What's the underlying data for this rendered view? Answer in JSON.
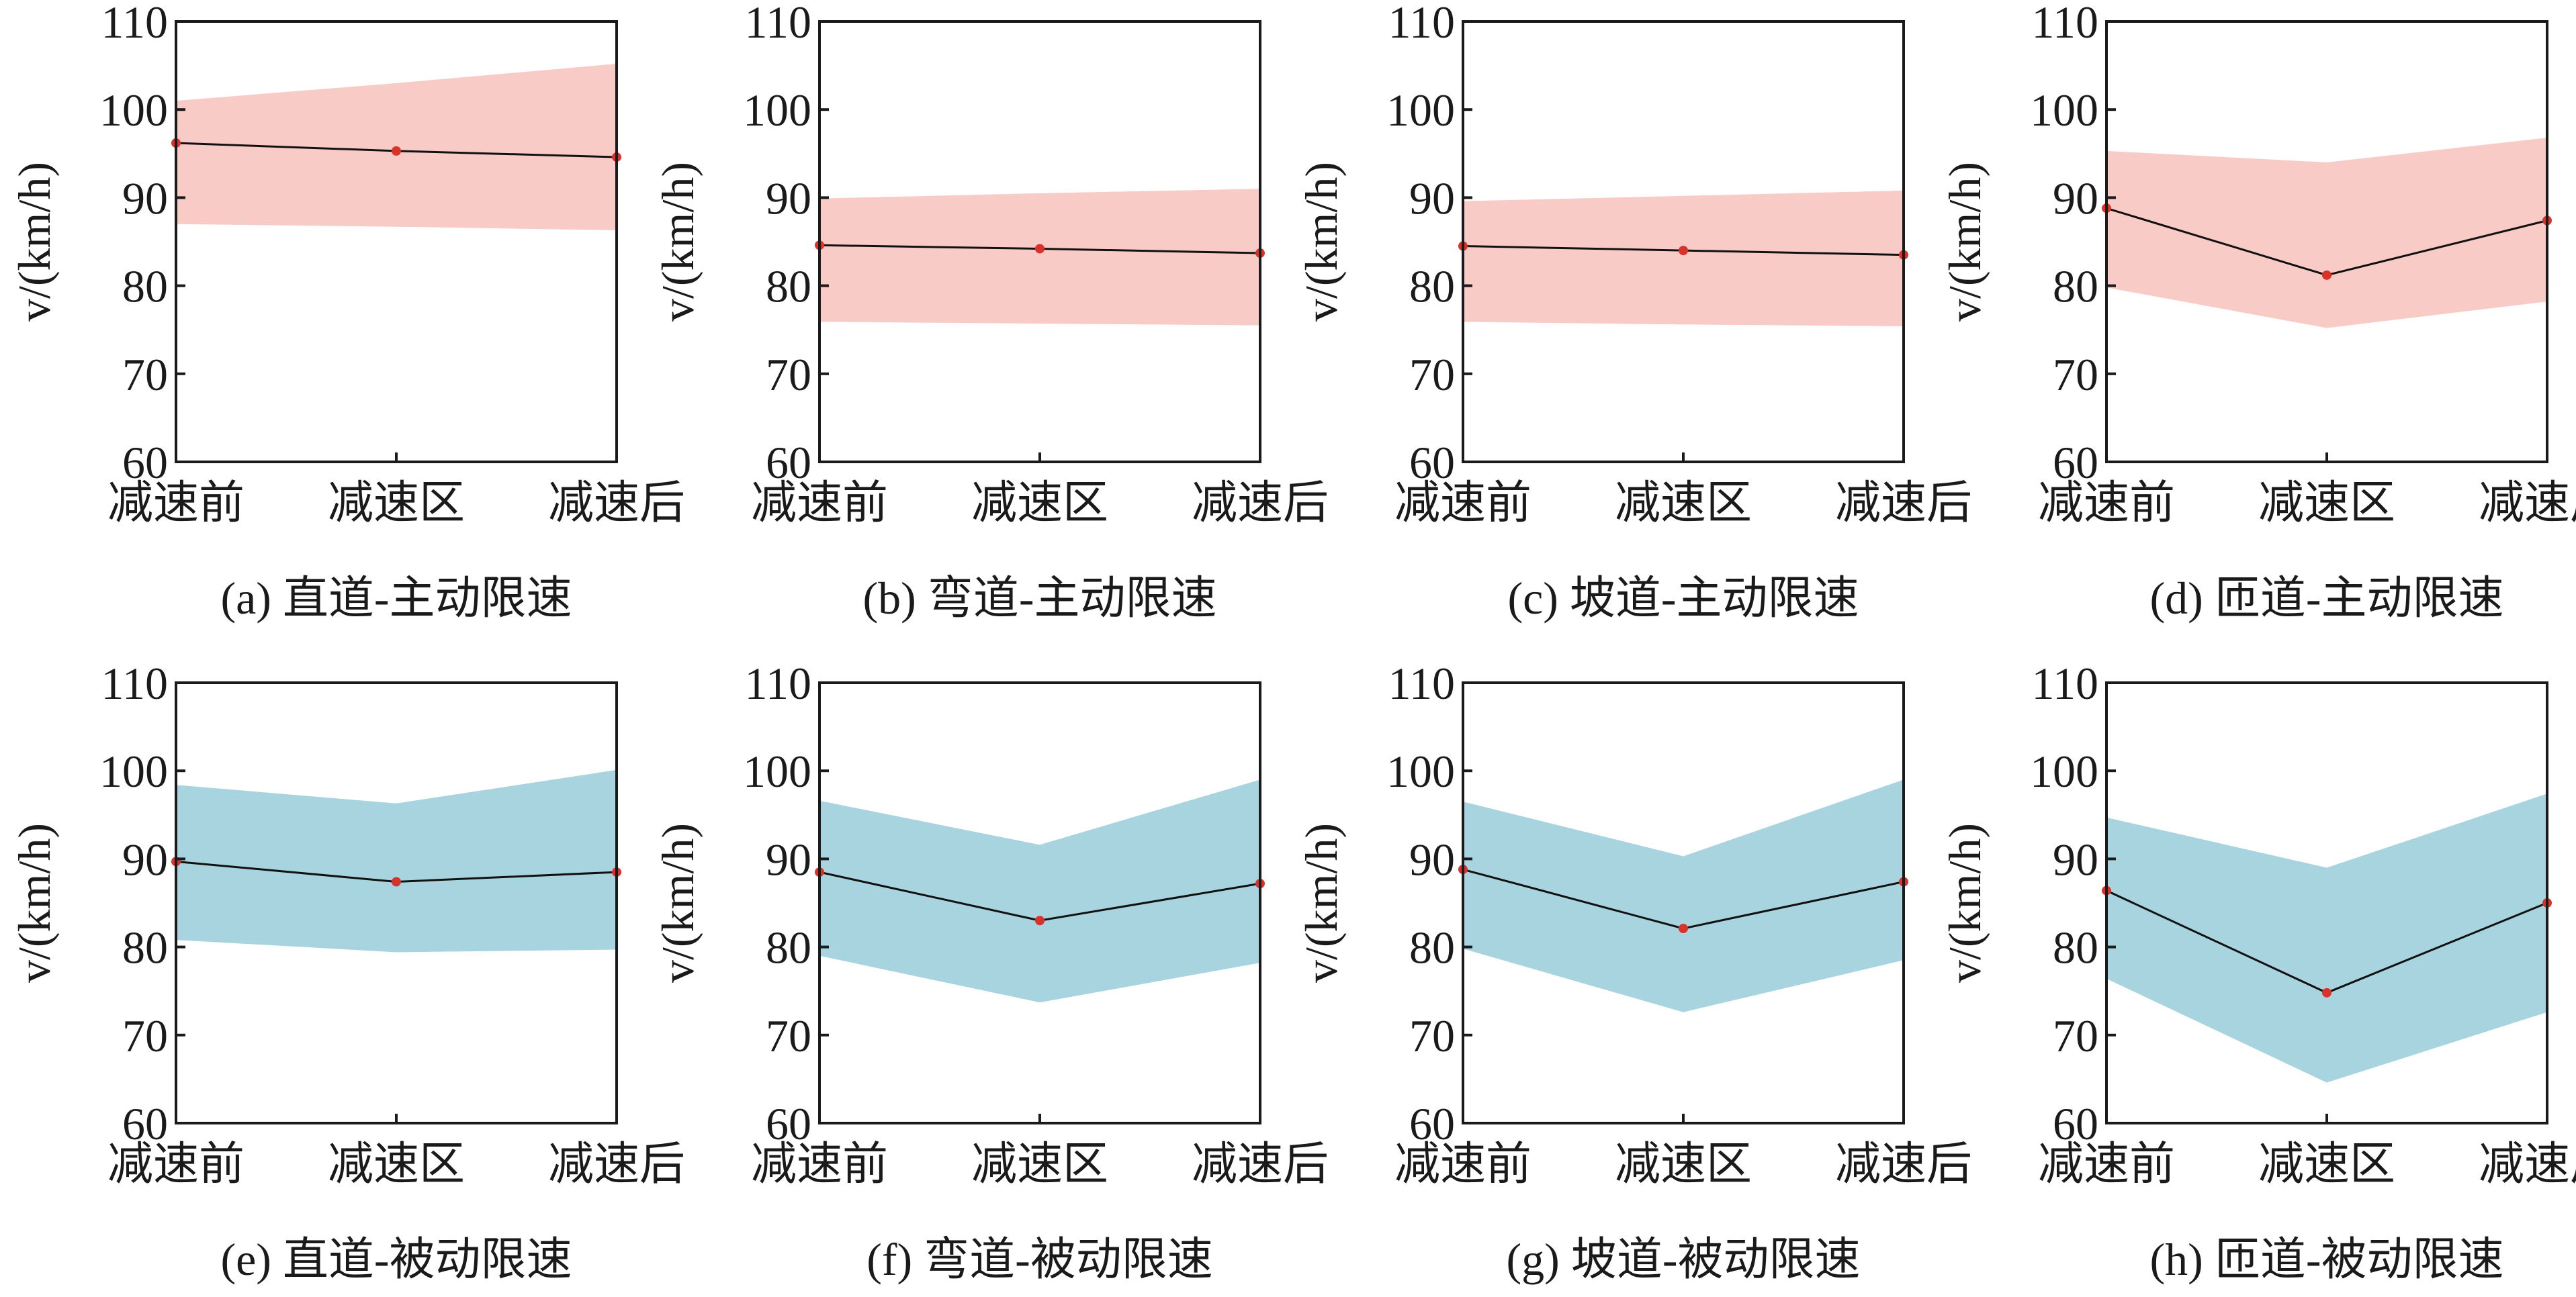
{
  "colors": {
    "active_band": "#f9cbc6",
    "passive_band": "#a8d4e0",
    "mean_line": "#111111",
    "point": "#d9322b",
    "axis": "#1a1a1a"
  },
  "chart_data": [
    {
      "type": "area",
      "caption": "(a) 直道-主动限速",
      "ylabel": "v/(km/h)",
      "ylim": [
        60,
        110
      ],
      "yticks": [
        60,
        70,
        80,
        90,
        100,
        110
      ],
      "categories": [
        "减速前",
        "减速区",
        "减速后"
      ],
      "band_color": "#f9cbc6",
      "mean": [
        96.2,
        95.3,
        94.6
      ],
      "upper": [
        101.0,
        103.0,
        105.2
      ],
      "lower": [
        87.0,
        86.7,
        86.3
      ]
    },
    {
      "type": "area",
      "caption": "(b) 弯道-主动限速",
      "ylabel": "v/(km/h)",
      "ylim": [
        60,
        110
      ],
      "yticks": [
        60,
        70,
        80,
        90,
        100,
        110
      ],
      "categories": [
        "减速前",
        "减速区",
        "减速后"
      ],
      "band_color": "#f9cbc6",
      "mean": [
        84.6,
        84.2,
        83.7
      ],
      "upper": [
        89.9,
        90.5,
        91.0
      ],
      "lower": [
        75.9,
        75.7,
        75.5
      ]
    },
    {
      "type": "area",
      "caption": "(c) 坡道-主动限速",
      "ylabel": "v/(km/h)",
      "ylim": [
        60,
        110
      ],
      "yticks": [
        60,
        70,
        80,
        90,
        100,
        110
      ],
      "categories": [
        "减速前",
        "减速区",
        "减速后"
      ],
      "band_color": "#f9cbc6",
      "mean": [
        84.5,
        84.0,
        83.5
      ],
      "upper": [
        89.6,
        90.2,
        90.8
      ],
      "lower": [
        75.9,
        75.6,
        75.4
      ]
    },
    {
      "type": "area",
      "caption": "(d) 匝道-主动限速",
      "ylabel": "v/(km/h)",
      "ylim": [
        60,
        110
      ],
      "yticks": [
        60,
        70,
        80,
        90,
        100,
        110
      ],
      "categories": [
        "减速前",
        "减速区",
        "减速后"
      ],
      "band_color": "#f9cbc6",
      "mean": [
        88.8,
        81.2,
        87.4
      ],
      "upper": [
        95.3,
        94.0,
        96.8
      ],
      "lower": [
        79.8,
        75.2,
        78.2
      ]
    },
    {
      "type": "area",
      "caption": "(e) 直道-被动限速",
      "ylabel": "v/(km/h)",
      "ylim": [
        60,
        110
      ],
      "yticks": [
        60,
        70,
        80,
        90,
        100,
        110
      ],
      "categories": [
        "减速前",
        "减速区",
        "减速后"
      ],
      "band_color": "#a8d4e0",
      "mean": [
        89.7,
        87.4,
        88.5
      ],
      "upper": [
        98.4,
        96.3,
        100.1
      ],
      "lower": [
        80.8,
        79.4,
        79.7
      ]
    },
    {
      "type": "area",
      "caption": "(f) 弯道-被动限速",
      "ylabel": "v/(km/h)",
      "ylim": [
        60,
        110
      ],
      "yticks": [
        60,
        70,
        80,
        90,
        100,
        110
      ],
      "categories": [
        "减速前",
        "减速区",
        "减速后"
      ],
      "band_color": "#a8d4e0",
      "mean": [
        88.5,
        83.0,
        87.2
      ],
      "upper": [
        96.6,
        91.6,
        99.0
      ],
      "lower": [
        79.0,
        73.7,
        78.2
      ]
    },
    {
      "type": "area",
      "caption": "(g) 坡道-被动限速",
      "ylabel": "v/(km/h)",
      "ylim": [
        60,
        110
      ],
      "yticks": [
        60,
        70,
        80,
        90,
        100,
        110
      ],
      "categories": [
        "减速前",
        "减速区",
        "减速后"
      ],
      "band_color": "#a8d4e0",
      "mean": [
        88.8,
        82.1,
        87.4
      ],
      "upper": [
        96.5,
        90.3,
        99.0
      ],
      "lower": [
        79.8,
        72.6,
        78.5
      ]
    },
    {
      "type": "area",
      "caption": "(h) 匝道-被动限速",
      "ylabel": "v/(km/h)",
      "ylim": [
        60,
        110
      ],
      "yticks": [
        60,
        70,
        80,
        90,
        100,
        110
      ],
      "categories": [
        "减速前",
        "减速区",
        "减速后"
      ],
      "band_color": "#a8d4e0",
      "mean": [
        86.4,
        74.8,
        85.0
      ],
      "upper": [
        94.7,
        89.0,
        97.4
      ],
      "lower": [
        76.4,
        64.6,
        72.6
      ]
    }
  ]
}
